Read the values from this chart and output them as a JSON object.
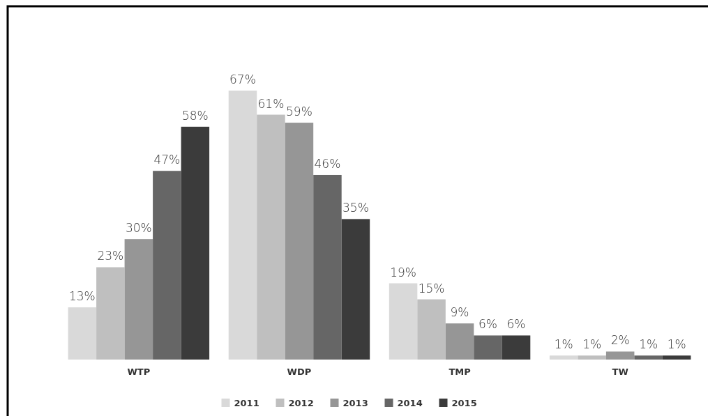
{
  "chart_data": {
    "type": "bar",
    "categories": [
      "WTP",
      "WDP",
      "TMP",
      "TW"
    ],
    "series": [
      {
        "name": "2011",
        "color": "#d9d9d9",
        "values": [
          13,
          67,
          19,
          1
        ],
        "value_labels": [
          "13%",
          "67%",
          "19%",
          "1%"
        ]
      },
      {
        "name": "2012",
        "color": "#bfbfbf",
        "values": [
          23,
          61,
          15,
          1
        ],
        "value_labels": [
          "23%",
          "61%",
          "15%",
          "1%"
        ]
      },
      {
        "name": "2013",
        "color": "#969696",
        "values": [
          30,
          59,
          9,
          2
        ],
        "value_labels": [
          "30%",
          "59%",
          "9%",
          "2%"
        ]
      },
      {
        "name": "2014",
        "color": "#666666",
        "values": [
          47,
          46,
          6,
          1
        ],
        "value_labels": [
          "47%",
          "46%",
          "6%",
          "1%"
        ]
      },
      {
        "name": "2015",
        "color": "#3b3b3b",
        "values": [
          58,
          35,
          6,
          1
        ],
        "value_labels": [
          "58%",
          "35%",
          "6%",
          "1%"
        ]
      }
    ],
    "legend": "bottom",
    "grid": false
  }
}
